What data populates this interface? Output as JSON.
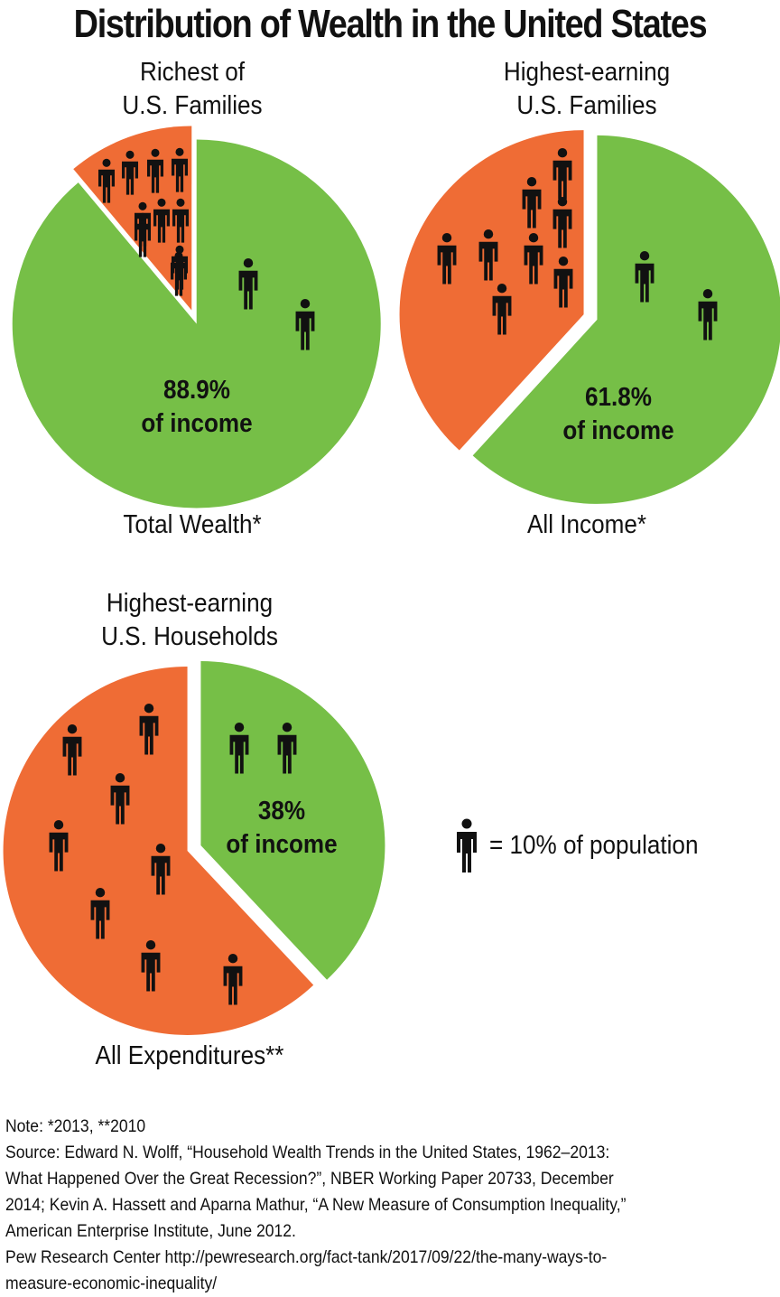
{
  "title": "Distribution of Wealth in the United States",
  "colors": {
    "top_group": "#ef6c35",
    "rest": "#76bf47",
    "separator": "#ffffff",
    "figure": "#111111"
  },
  "icon": "person-icon",
  "chart_data": [
    {
      "type": "pie",
      "title_lines": [
        "Richest of",
        "U.S. Families"
      ],
      "caption": "Total Wealth*",
      "label_lines": [
        "88.9%",
        "of income"
      ],
      "slices": [
        {
          "name": "",
          "value": 88.9,
          "color": "#76bf47",
          "figures": 2
        },
        {
          "name": "",
          "value": 11.1,
          "color": "#ef6c35",
          "figures": 10
        }
      ]
    },
    {
      "type": "pie",
      "title_lines": [
        "Highest-earning",
        "U.S. Families"
      ],
      "caption": "All Income*",
      "label_lines": [
        "61.8%",
        "of income"
      ],
      "slices": [
        {
          "name": "",
          "value": 61.8,
          "color": "#76bf47",
          "figures": 2
        },
        {
          "name": "",
          "value": 38.2,
          "color": "#ef6c35",
          "figures": 8
        }
      ]
    },
    {
      "type": "pie",
      "title_lines": [
        "Highest-earning",
        "U.S. Households"
      ],
      "caption": "All Expenditures**",
      "label_lines": [
        "38%",
        "of income"
      ],
      "slices": [
        {
          "name": "",
          "value": 38,
          "color": "#76bf47",
          "figures": 2
        },
        {
          "name": "",
          "value": 62,
          "color": "#ef6c35",
          "figures": 8
        }
      ]
    }
  ],
  "legend": {
    "text": "= 10% of population"
  },
  "notes": {
    "note": "Note: *2013, **2010",
    "source_lines": [
      "Source: Edward N. Wolff, “Household Wealth Trends in the United States, 1962–2013:",
      "What Happened Over the Great Recession?”, NBER Working Paper 20733, December",
      "2014; Kevin A. Hassett and Aparna Mathur, “A New Measure of Consumption Inequality,”",
      "American Enterprise Institute, June 2012.",
      "Pew Research Center http://pewresearch.org/fact-tank/2017/09/22/the-many-ways-to-",
      "measure-economic-inequality/"
    ]
  }
}
